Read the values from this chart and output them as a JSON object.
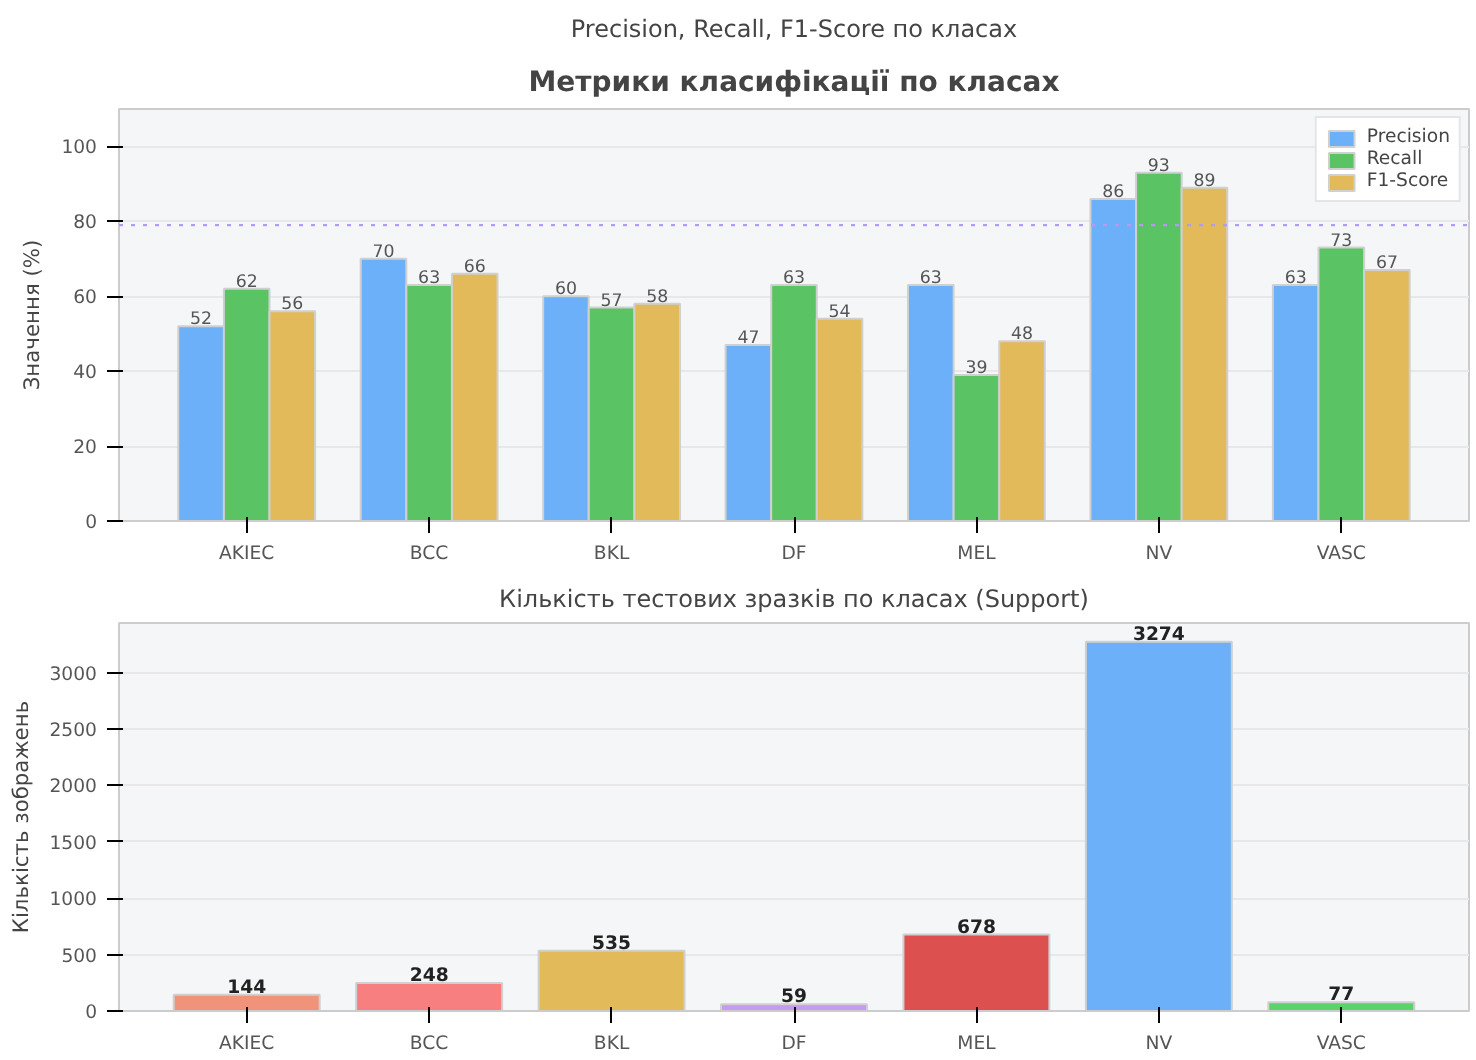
{
  "chart_data": [
    {
      "type": "bar",
      "title": "Метрики класифікації по класах",
      "subtitle": "Precision, Recall, F1-Score по класах",
      "ylabel": "Значення (%)",
      "categories": [
        "AKIEC",
        "BCC",
        "BKL",
        "DF",
        "MEL",
        "NV",
        "VASC"
      ],
      "series": [
        {
          "name": "Precision",
          "color": "#6cb0fa",
          "values": [
            52,
            70,
            60,
            47,
            63,
            86,
            63
          ]
        },
        {
          "name": "Recall",
          "color": "#5ac364",
          "values": [
            62,
            63,
            57,
            63,
            39,
            93,
            73
          ]
        },
        {
          "name": "F1-Score",
          "color": "#e3ba5a",
          "values": [
            56,
            66,
            58,
            54,
            48,
            89,
            67
          ]
        }
      ],
      "ylim": [
        0,
        110
      ],
      "yticks": [
        0,
        20,
        40,
        60,
        80,
        100
      ],
      "grid": "y",
      "legend": "top right",
      "data_labels": true,
      "ref_lines": [
        {
          "axis": "y",
          "value": 79,
          "color": "#b19cf0",
          "line_style": "dotted"
        }
      ]
    },
    {
      "type": "bar",
      "title": "Кількість тестових зразків по класах (Support)",
      "ylabel": "Кількість зображень",
      "categories": [
        "AKIEC",
        "BCC",
        "BKL",
        "DF",
        "MEL",
        "NV",
        "VASC"
      ],
      "values": [
        144,
        248,
        535,
        59,
        678,
        3274,
        77
      ],
      "colors": [
        "#f0937a",
        "#f87f7f",
        "#e3ba5a",
        "#c59af0",
        "#dc5050",
        "#6cb0fa",
        "#5ad46a"
      ],
      "ylim": [
        0,
        3440
      ],
      "yticks": [
        0,
        500,
        1000,
        1500,
        2000,
        2500,
        3000
      ],
      "grid": "y",
      "data_labels": true
    }
  ]
}
